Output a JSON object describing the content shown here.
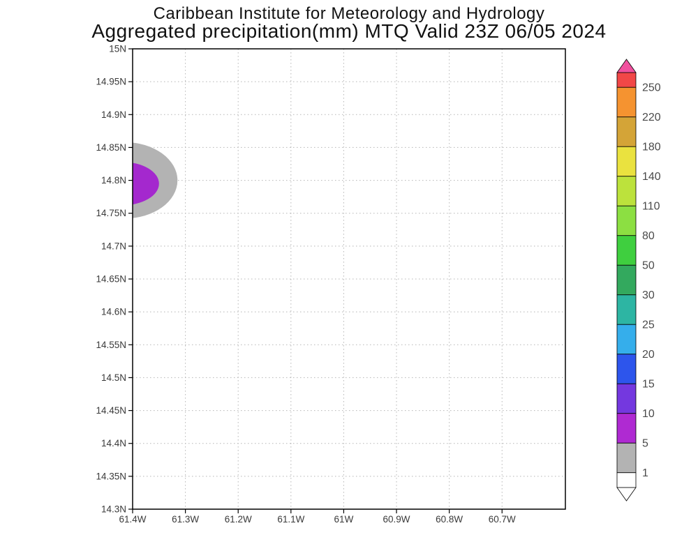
{
  "page": {
    "title_line1": "Caribbean Institute for Meteorology and Hydrology",
    "title_line2": "Aggregated precipitation(mm) MTQ Valid 23Z 06/05 2024"
  },
  "chart_data": {
    "type": "heatmap",
    "title": "Caribbean Institute for Meteorology and Hydrology",
    "subtitle": "Aggregated precipitation(mm) MTQ Valid 23Z 06/05 2024",
    "variable": "Aggregated precipitation",
    "units": "mm",
    "region": "MTQ",
    "valid_time": "23Z 06/05 2024",
    "grid": true,
    "legend_position": "right-colorbar",
    "xlim_deg_west": [
      61.4,
      60.58
    ],
    "ylim_deg_north": [
      14.3,
      15.0
    ],
    "x_ticks": [
      {
        "value": 61.4,
        "label": "61.4W"
      },
      {
        "value": 61.3,
        "label": "61.3W"
      },
      {
        "value": 61.2,
        "label": "61.2W"
      },
      {
        "value": 61.1,
        "label": "61.1W"
      },
      {
        "value": 61.0,
        "label": "61W"
      },
      {
        "value": 60.9,
        "label": "60.9W"
      },
      {
        "value": 60.8,
        "label": "60.8W"
      },
      {
        "value": 60.7,
        "label": "60.7W"
      }
    ],
    "y_ticks": [
      {
        "value": 15.0,
        "label": "15N"
      },
      {
        "value": 14.95,
        "label": "14.95N"
      },
      {
        "value": 14.9,
        "label": "14.9N"
      },
      {
        "value": 14.85,
        "label": "14.85N"
      },
      {
        "value": 14.8,
        "label": "14.8N"
      },
      {
        "value": 14.75,
        "label": "14.75N"
      },
      {
        "value": 14.7,
        "label": "14.7N"
      },
      {
        "value": 14.65,
        "label": "14.65N"
      },
      {
        "value": 14.6,
        "label": "14.6N"
      },
      {
        "value": 14.55,
        "label": "14.55N"
      },
      {
        "value": 14.5,
        "label": "14.5N"
      },
      {
        "value": 14.45,
        "label": "14.45N"
      },
      {
        "value": 14.4,
        "label": "14.4N"
      },
      {
        "value": 14.35,
        "label": "14.35N"
      },
      {
        "value": 14.3,
        "label": "14.3N"
      }
    ],
    "features": [
      {
        "name": "precip-contour-1-5mm",
        "value_range_mm": "1-5",
        "color": "#b3b3b3",
        "center_lon_w": 61.415,
        "center_lat_n": 14.8,
        "rx_deg": 0.1,
        "ry_deg": 0.058
      },
      {
        "name": "precip-contour-5-10mm",
        "value_range_mm": "5-10",
        "color": "#a428ce",
        "center_lon_w": 61.42,
        "center_lat_n": 14.795,
        "rx_deg": 0.07,
        "ry_deg": 0.033
      }
    ],
    "colorbar": {
      "boundary_labels_top_to_bottom": [
        "250",
        "220",
        "180",
        "140",
        "110",
        "80",
        "50",
        "30",
        "25",
        "20",
        "15",
        "10",
        "5",
        "1"
      ],
      "segment_colors_top_to_bottom": [
        "#f14747",
        "#f59330",
        "#d4a437",
        "#eae23f",
        "#bce23c",
        "#8cdf42",
        "#3fcf3f",
        "#33a95e",
        "#2db5a3",
        "#35aeeb",
        "#2d55ec",
        "#7438df",
        "#af2ad2",
        "#b3b3b3",
        "#ffffff"
      ],
      "top_arrow_color": "#f0509e",
      "bottom_arrow_color": "#ffffff",
      "label_color": "#4a4a4a"
    },
    "style": {
      "grid_color": "#b5b5b5",
      "axis_color": "#000000",
      "tick_label_color": "#3a3a3a"
    }
  }
}
